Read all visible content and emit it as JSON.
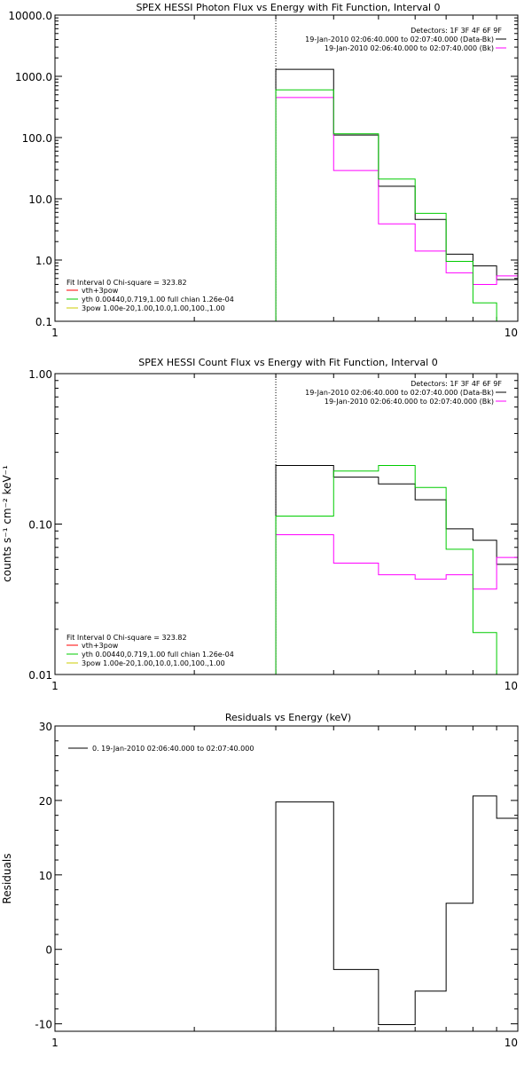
{
  "colors": {
    "data": "#000000",
    "background": "#ff00ff",
    "model_total": "#ff0000",
    "model_vth": "#00cc00",
    "model_3pow": "#cccc00"
  },
  "chart_data": [
    {
      "type": "line",
      "step": true,
      "title": "SPEX HESSI Photon Flux vs Energy with Fit Function, Interval 0",
      "xlabel": "",
      "ylabel": "",
      "xscale": "log",
      "yscale": "log",
      "xlim": [
        1,
        10
      ],
      "ylim": [
        0.1,
        10000
      ],
      "xticks": [
        "1",
        "10"
      ],
      "yticks": [
        "0.1",
        "1.0",
        "10.0",
        "100.0",
        "1000.0",
        "10000.0"
      ],
      "marker_x": 3,
      "header": {
        "detectors": "Detectors: 1F 3F 4F 6F 9F",
        "data_label": "19-Jan-2010 02:06:40.000 to 02:07:40.000 (Data-Bk)",
        "bk_label": "19-Jan-2010 02:06:40.000 to 02:07:40.000 (Bk)"
      },
      "fit_legend": {
        "header": "Fit Interval 0   Chi-square = 323.82",
        "items": [
          "vth+3pow",
          "yth 0.00440,0.719,1.00  full chian 1.26e-04",
          "3pow 1.00e-20,1.00,10.0,1.00,100.,1.00"
        ]
      },
      "bin_edges": [
        3.0,
        4.0,
        5.0,
        6.0,
        7.0,
        8.0,
        9.0,
        10.0
      ],
      "series": [
        {
          "role": "data",
          "values": [
            1300,
            110,
            16,
            4.6,
            1.25,
            0.8,
            0.48
          ]
        },
        {
          "role": "background",
          "values": [
            450,
            29,
            3.9,
            1.4,
            0.62,
            0.4,
            0.55
          ]
        },
        {
          "role": "vth",
          "values": [
            600,
            115,
            21,
            5.8,
            0.95,
            0.2,
            0.05
          ]
        }
      ]
    },
    {
      "type": "line",
      "step": true,
      "title": "SPEX HESSI Count Flux vs Energy with Fit Function, Interval 0",
      "xlabel": "",
      "ylabel": "counts s⁻¹ cm⁻² keV⁻¹",
      "xscale": "log",
      "yscale": "log",
      "xlim": [
        1,
        10
      ],
      "ylim": [
        0.01,
        1.0
      ],
      "xticks": [
        "1",
        "10"
      ],
      "yticks": [
        "0.01",
        "0.10",
        "1.00"
      ],
      "marker_x": 3,
      "header": {
        "detectors": "Detectors: 1F 3F 4F 6F 9F",
        "data_label": "19-Jan-2010 02:06:40.000 to 02:07:40.000 (Data-Bk)",
        "bk_label": "19-Jan-2010 02:06:40.000 to 02:07:40.000 (Bk)"
      },
      "fit_legend": {
        "header": "Fit Interval 0   Chi-square = 323.82",
        "items": [
          "vth+3pow",
          "yth 0.00440,0.719,1.00  full chian 1.26e-04",
          "3pow 1.00e-20,1.00,10.0,1.00,100.,1.00"
        ]
      },
      "bin_edges": [
        3.0,
        4.0,
        5.0,
        6.0,
        7.0,
        8.0,
        9.0,
        10.0
      ],
      "series": [
        {
          "role": "data",
          "values": [
            0.245,
            0.205,
            0.185,
            0.145,
            0.093,
            0.078,
            0.054
          ]
        },
        {
          "role": "background",
          "values": [
            0.085,
            0.055,
            0.046,
            0.043,
            0.046,
            0.037,
            0.06
          ]
        },
        {
          "role": "vth",
          "values": [
            0.113,
            0.225,
            0.245,
            0.175,
            0.068,
            0.019,
            0.008
          ]
        }
      ]
    },
    {
      "type": "line",
      "step": true,
      "title": "Residuals vs Energy (keV)",
      "xlabel": "",
      "ylabel": "Residuals",
      "xscale": "log",
      "yscale": "linear",
      "xlim": [
        1,
        10
      ],
      "ylim": [
        -11,
        30
      ],
      "xticks": [
        "1",
        "10"
      ],
      "yticks": [
        "-10",
        "0",
        "10",
        "20",
        "30"
      ],
      "legend": "0. 19-Jan-2010 02:06:40.000 to 02:07:40.000",
      "bin_edges": [
        3.0,
        4.0,
        5.0,
        6.0,
        7.0,
        8.0,
        9.0,
        10.0
      ],
      "series": [
        {
          "role": "data",
          "values": [
            19.8,
            -2.7,
            -10.1,
            -5.6,
            6.2,
            20.6,
            17.6
          ]
        }
      ]
    }
  ]
}
